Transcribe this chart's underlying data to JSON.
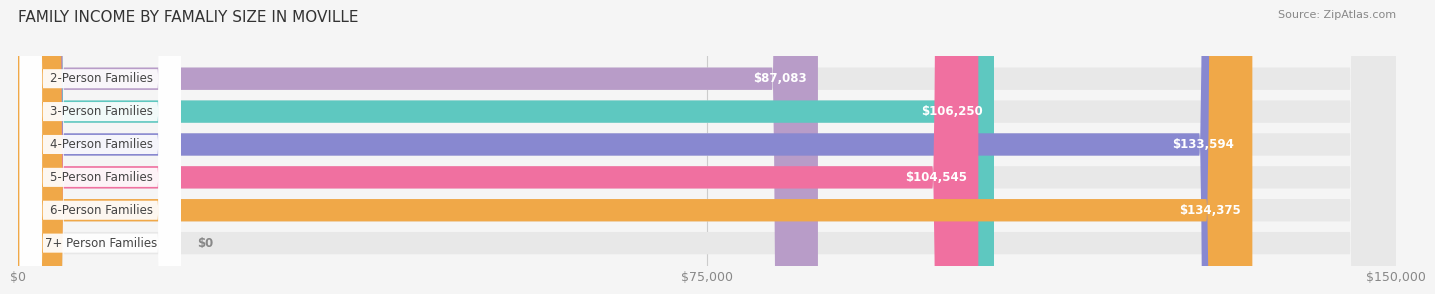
{
  "title": "FAMILY INCOME BY FAMALIY SIZE IN MOVILLE",
  "source": "Source: ZipAtlas.com",
  "categories": [
    "2-Person Families",
    "3-Person Families",
    "4-Person Families",
    "5-Person Families",
    "6-Person Families",
    "7+ Person Families"
  ],
  "values": [
    87083,
    106250,
    133594,
    104545,
    134375,
    0
  ],
  "bar_colors": [
    "#b89cc8",
    "#5ec8c0",
    "#8888d0",
    "#f070a0",
    "#f0a848",
    "#f0c0c0"
  ],
  "label_texts": [
    "$87,083",
    "$106,250",
    "$133,594",
    "$104,545",
    "$134,375",
    "$0"
  ],
  "xlim": [
    0,
    150000
  ],
  "xticks": [
    0,
    75000,
    150000
  ],
  "xticklabels": [
    "$0",
    "$75,000",
    "$150,000"
  ],
  "background_color": "#f5f5f5",
  "bar_background_color": "#e8e8e8",
  "title_fontsize": 11,
  "source_fontsize": 8,
  "label_fontsize": 8.5,
  "tick_fontsize": 9,
  "category_fontsize": 8.5
}
